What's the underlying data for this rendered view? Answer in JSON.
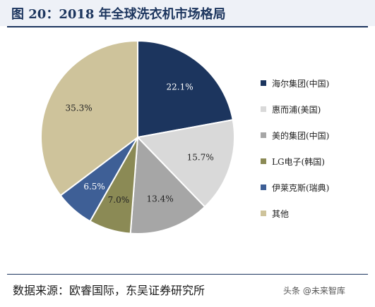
{
  "figure_title": "图 20：2018 年全球洗衣机市场格局",
  "source_note": "数据来源：欧睿国际，东吴证券研究所",
  "watermark": "头条 @未来智库",
  "chart_data": {
    "type": "pie",
    "title": "图 20：2018 年全球洗衣机市场格局",
    "legend_position": "right",
    "slices": [
      {
        "name": "海尔集团(中国)",
        "value": 22.1,
        "label": "22.1%",
        "color": "#1c355e"
      },
      {
        "name": "惠而浦(美国)",
        "value": 15.7,
        "label": "15.7%",
        "color": "#d9d9d9"
      },
      {
        "name": "美的集团(中国)",
        "value": 13.4,
        "label": "13.4%",
        "color": "#a6a6a6"
      },
      {
        "name": "LG电子(韩国)",
        "value": 7.0,
        "label": "7.0%",
        "color": "#8b8a55"
      },
      {
        "name": "伊莱克斯(瑞典)",
        "value": 6.5,
        "label": "6.5%",
        "color": "#3e5f96"
      },
      {
        "name": "其他",
        "value": 35.3,
        "label": "35.3%",
        "color": "#cec39b"
      }
    ]
  }
}
